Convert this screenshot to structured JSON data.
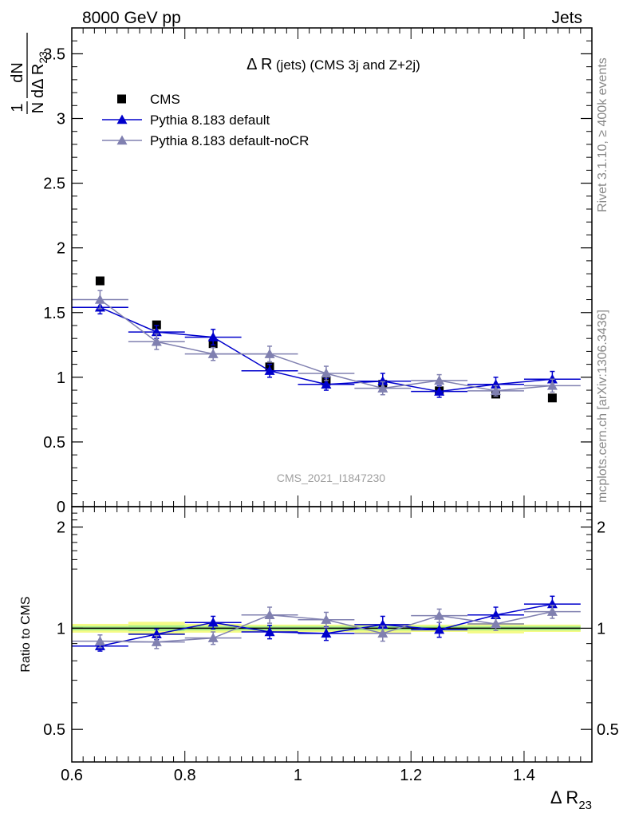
{
  "header": {
    "left": "8000 GeV pp",
    "right": "Jets"
  },
  "side_labels": {
    "rivet": "Rivet 3.1.10, ≥ 400k events",
    "mcplots": "mcplots.cern.ch [arXiv:1306.3436]"
  },
  "y_axis_label": {
    "frac_num": "1",
    "frac_den": "N",
    "d_num": "dN",
    "d_den": "dΔ R",
    "d_den_sub": "23"
  },
  "x_axis_label": {
    "main": "Δ R",
    "sub": "23"
  },
  "chart_data": [
    {
      "type": "scatter",
      "panel": "main",
      "title": "Δ R (jets) (CMS 3j and Z+2j)",
      "title_main": "Δ R",
      "title_rest": "(jets) (CMS 3j and Z+2j)",
      "watermark": "CMS_2021_I1847230",
      "xlim": [
        0.6,
        1.52
      ],
      "ylim": [
        0,
        3.7
      ],
      "yticks": [
        {
          "value": 0,
          "label": "0"
        },
        {
          "value": 0.5,
          "label": "0.5"
        },
        {
          "value": 1,
          "label": "1"
        },
        {
          "value": 1.5,
          "label": "1.5"
        },
        {
          "value": 2,
          "label": "2"
        },
        {
          "value": 2.5,
          "label": "2.5"
        },
        {
          "value": 3,
          "label": "3"
        },
        {
          "value": 3.5,
          "label": "3.5"
        }
      ],
      "x": [
        0.65,
        0.75,
        0.85,
        0.95,
        1.05,
        1.15,
        1.25,
        1.35,
        1.45
      ],
      "series": [
        {
          "name": "CMS",
          "color": "#000000",
          "marker": "square",
          "line": false,
          "values": [
            1.745,
            1.405,
            1.26,
            1.08,
            0.97,
            0.945,
            0.895,
            0.87,
            0.84
          ],
          "errors": [
            0,
            0,
            0,
            0,
            0,
            0,
            0,
            0,
            0
          ]
        },
        {
          "name": "Pythia 8.183 default",
          "color": "#0000cc",
          "marker": "triangle",
          "line": true,
          "values": [
            1.54,
            1.35,
            1.31,
            1.05,
            0.945,
            0.97,
            0.89,
            0.945,
            0.985
          ],
          "errors": [
            0.05,
            0.05,
            0.06,
            0.05,
            0.045,
            0.06,
            0.045,
            0.055,
            0.06
          ]
        },
        {
          "name": "Pythia 8.183 default-noCR",
          "color": "#8080b0",
          "marker": "triangle",
          "line": true,
          "values": [
            1.6,
            1.275,
            1.18,
            1.18,
            1.03,
            0.915,
            0.975,
            0.895,
            0.935
          ],
          "errors": [
            0.07,
            0.06,
            0.05,
            0.06,
            0.055,
            0.05,
            0.045,
            0.04,
            0.05
          ]
        }
      ]
    },
    {
      "type": "scatter",
      "panel": "ratio",
      "ylabel": "Ratio to CMS",
      "xlim": [
        0.6,
        1.52
      ],
      "ylim": [
        0.4,
        2.3
      ],
      "reference": 1,
      "xticks": [
        {
          "value": 0.6,
          "label": "0.6"
        },
        {
          "value": 0.8,
          "label": "0.8"
        },
        {
          "value": 1.0,
          "label": "1"
        },
        {
          "value": 1.2,
          "label": "1.2"
        },
        {
          "value": 1.4,
          "label": "1.4"
        }
      ],
      "yticks": [
        {
          "value": 0.5,
          "label": "0.5"
        },
        {
          "value": 1,
          "label": "1"
        },
        {
          "value": 2,
          "label": "2"
        }
      ],
      "x": [
        0.65,
        0.75,
        0.85,
        0.95,
        1.05,
        1.15,
        1.25,
        1.35,
        1.45
      ],
      "bands": [
        {
          "x0": 0.6,
          "x1": 0.7,
          "stat": 0.015,
          "total": 0.03
        },
        {
          "x0": 0.7,
          "x1": 0.8,
          "stat": 0.02,
          "total": 0.045
        },
        {
          "x0": 0.8,
          "x1": 0.9,
          "stat": 0.015,
          "total": 0.03
        },
        {
          "x0": 0.9,
          "x1": 1.0,
          "stat": 0.015,
          "total": 0.025
        },
        {
          "x0": 1.0,
          "x1": 1.1,
          "stat": 0.015,
          "total": 0.025
        },
        {
          "x0": 1.1,
          "x1": 1.2,
          "stat": 0.015,
          "total": 0.03
        },
        {
          "x0": 1.2,
          "x1": 1.3,
          "stat": 0.015,
          "total": 0.025
        },
        {
          "x0": 1.3,
          "x1": 1.4,
          "stat": 0.015,
          "total": 0.035
        },
        {
          "x0": 1.4,
          "x1": 1.5,
          "stat": 0.015,
          "total": 0.025
        }
      ],
      "series": [
        {
          "name": "Pythia 8.183 default",
          "color": "#0000cc",
          "values": [
            0.885,
            0.96,
            1.04,
            0.975,
            0.965,
            1.025,
            0.99,
            1.095,
            1.18
          ],
          "errors": [
            0.03,
            0.035,
            0.045,
            0.045,
            0.045,
            0.06,
            0.05,
            0.06,
            0.065
          ]
        },
        {
          "name": "Pythia 8.183 default-noCR",
          "color": "#8080b0",
          "values": [
            0.915,
            0.91,
            0.935,
            1.095,
            1.06,
            0.965,
            1.09,
            1.03,
            1.12
          ],
          "errors": [
            0.04,
            0.04,
            0.04,
            0.06,
            0.055,
            0.05,
            0.05,
            0.045,
            0.05
          ]
        }
      ]
    }
  ]
}
